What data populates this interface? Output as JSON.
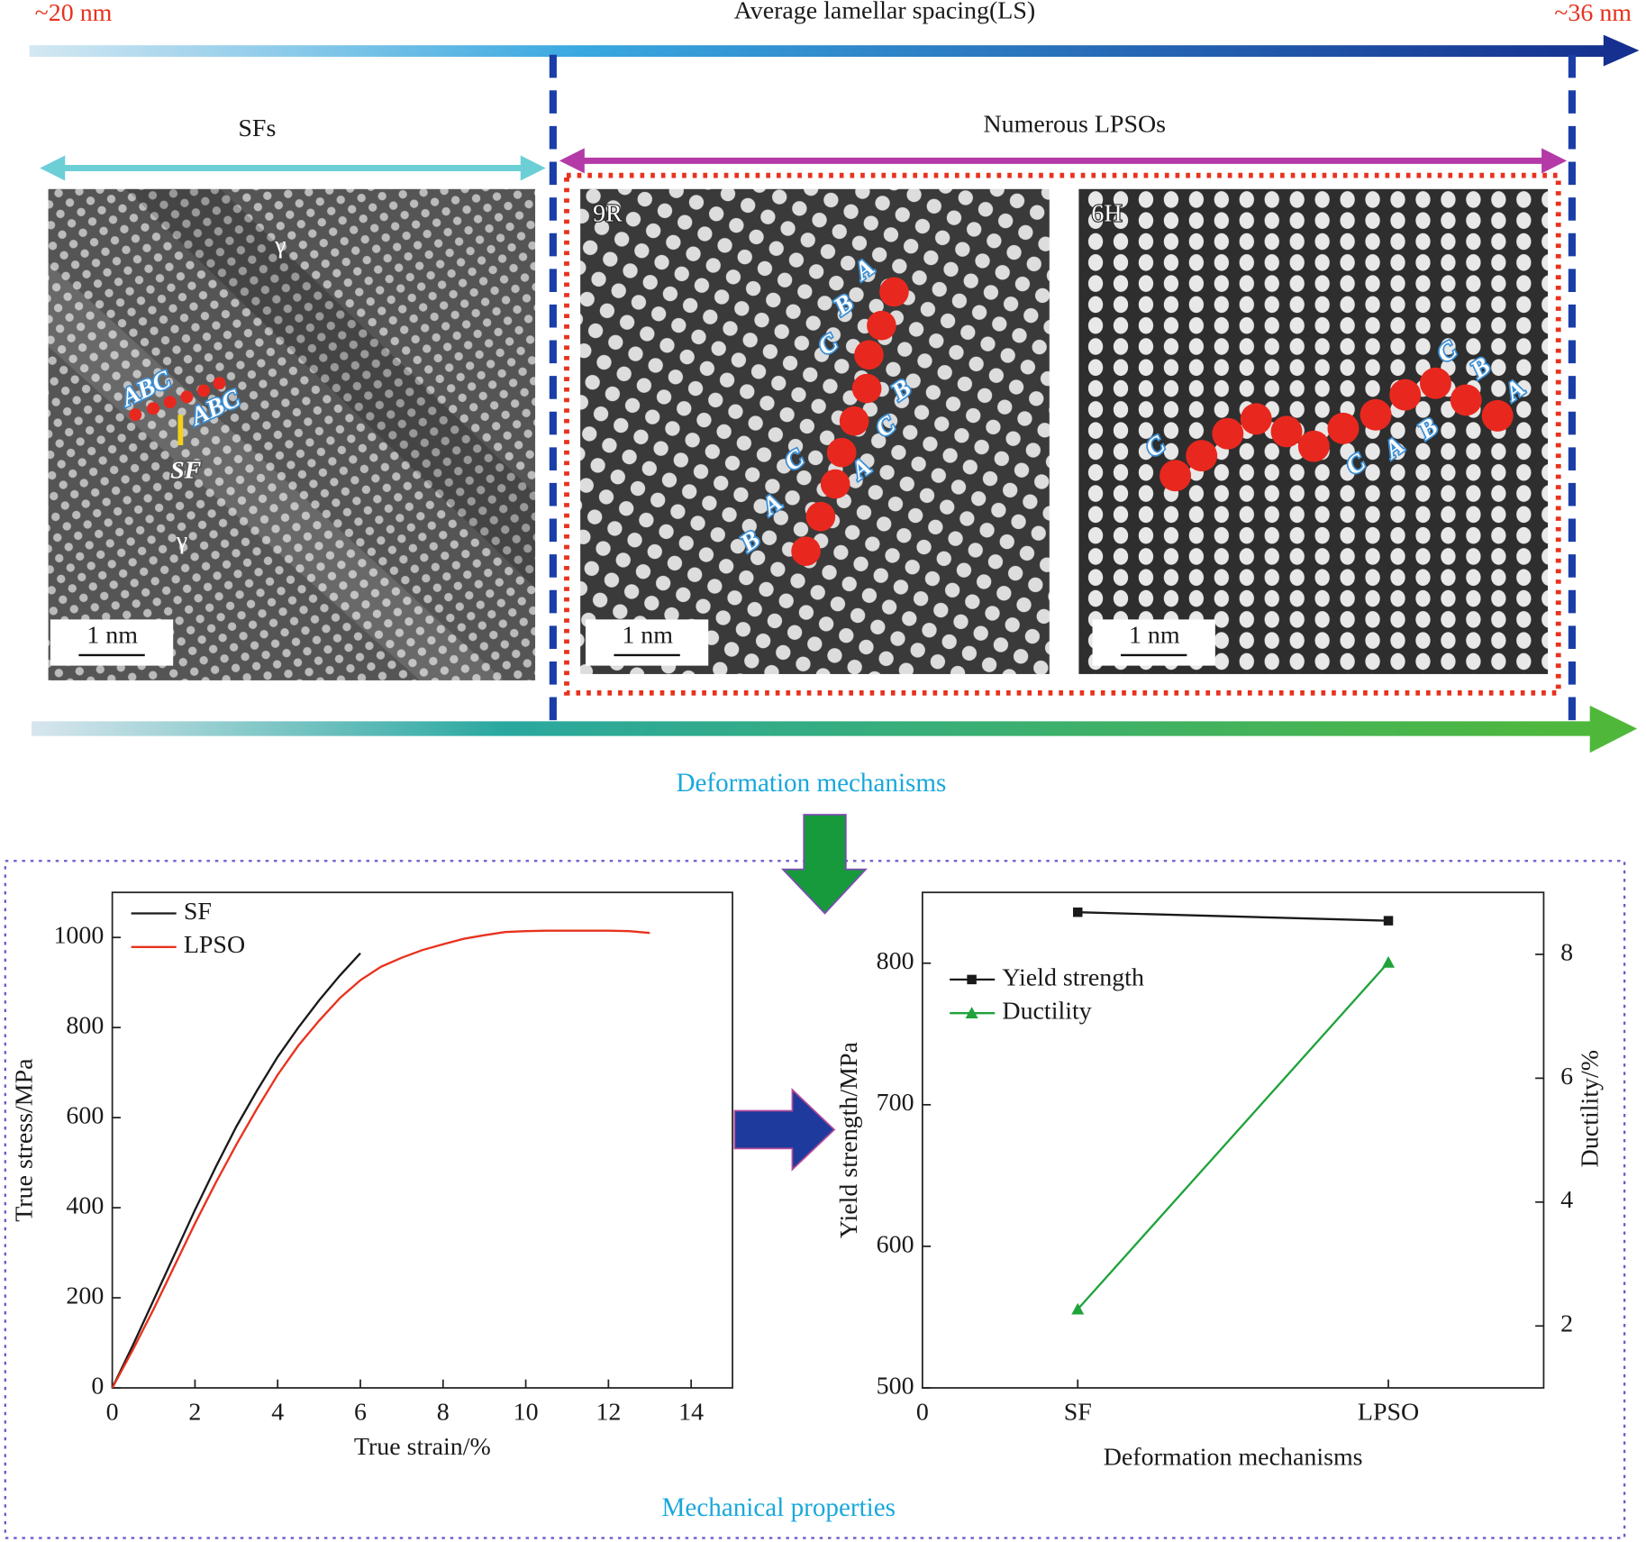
{
  "diagram": {
    "left_label": "~20 nm",
    "title": "Average lamellar spacing(LS)",
    "right_label": "~36 nm",
    "sf_region": "SFs",
    "lpso_region": "Numerous LPSOs",
    "bottom_label": "Deformation mechanisms",
    "properties_label": "Mechanical properties",
    "panels": [
      {
        "labels": [
          "γ",
          "γ",
          "ABC",
          "ABC",
          "SF"
        ],
        "scale": "1 nm"
      },
      {
        "label": "9R",
        "letters": [
          "A",
          "B",
          "C",
          "B",
          "C",
          "A",
          "C",
          "A",
          "B"
        ],
        "scale": "1 nm"
      },
      {
        "label": "6H",
        "letters": [
          "C",
          "C",
          "B",
          "A",
          "C",
          "A",
          "B"
        ],
        "scale": "1 nm"
      }
    ]
  },
  "chart_data": [
    {
      "type": "line",
      "x_label": "True strain/%",
      "y_label": "True stress/MPa",
      "x": [
        0,
        0.5,
        1,
        1.5,
        2,
        2.5,
        3,
        3.5,
        4,
        4.5,
        5,
        5.5,
        6,
        6.5,
        7,
        7.5,
        8,
        8.5,
        9,
        9.5,
        10,
        10.5,
        11,
        11.5,
        12,
        12.5,
        13
      ],
      "series": [
        {
          "name": "SF",
          "color": "#1a1a1a",
          "values": [
            0,
            95,
            195,
            295,
            395,
            490,
            580,
            660,
            735,
            800,
            860,
            915,
            965,
            null,
            null,
            null,
            null,
            null,
            null,
            null,
            null,
            null,
            null,
            null,
            null,
            null,
            null
          ]
        },
        {
          "name": "LPSO",
          "color": "#e8321e",
          "values": [
            0,
            85,
            175,
            270,
            365,
            455,
            540,
            620,
            695,
            760,
            815,
            865,
            905,
            935,
            955,
            972,
            985,
            997,
            1005,
            1012,
            1014,
            1015,
            1015,
            1015,
            1015,
            1014,
            1010
          ]
        }
      ],
      "xlim": [
        0,
        15
      ],
      "xticks": [
        0,
        2,
        4,
        6,
        8,
        10,
        12,
        14
      ],
      "ylim": [
        0,
        1100
      ],
      "yticks": [
        0,
        200,
        400,
        600,
        800,
        1000
      ],
      "legend": "upper left"
    },
    {
      "type": "line",
      "x_label": "Deformation mechanisms",
      "y_label": "Yield strength/MPa",
      "y2_label": "Ductility/%",
      "origin_label": "0",
      "categories": [
        "SF",
        "LPSO"
      ],
      "series": [
        {
          "name": "Yield strength",
          "color": "#1a1a1a",
          "marker": "square",
          "values": [
            836,
            830
          ]
        },
        {
          "name": "Ductility",
          "color": "#1fa33a",
          "marker": "triangle",
          "axis": "y2",
          "values": [
            2.27,
            7.87
          ]
        }
      ],
      "ylim": [
        500,
        850
      ],
      "yticks": [
        500,
        600,
        700,
        800
      ],
      "y2lim": [
        1,
        9
      ],
      "y2ticks": [
        2,
        4,
        6,
        8
      ],
      "legend": "upper left"
    }
  ]
}
